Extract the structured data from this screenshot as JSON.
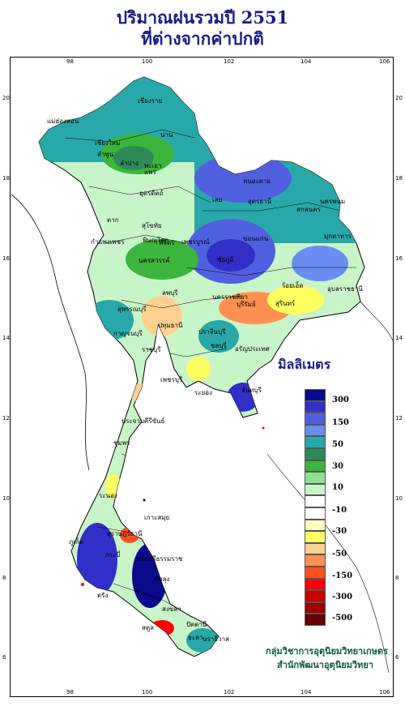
{
  "title_line1": "ปริมาณฝนรวมปี  2551",
  "title_line2": "ที่ต่างจากค่าปกติ",
  "axes": {
    "lon_ticks": [
      "98",
      "100",
      "102",
      "104",
      "106"
    ],
    "lat_ticks": [
      "20",
      "18",
      "16",
      "14",
      "12",
      "10",
      "8",
      "6"
    ]
  },
  "legend": {
    "title": "มิลลิเมตร",
    "colors": [
      "#0a0a8c",
      "#3030c8",
      "#5060e0",
      "#6b8cf0",
      "#28a8a8",
      "#2e8b57",
      "#3cb53c",
      "#90e090",
      "#c8f5c8",
      "#ffffff",
      "#ffffff",
      "#ffffc0",
      "#ffff60",
      "#ffd090",
      "#ff9050",
      "#ff5020",
      "#ff0000",
      "#c80000",
      "#a00000",
      "#640000"
    ],
    "labels": [
      "300",
      "150",
      "50",
      "30",
      "10",
      "-10",
      "-30",
      "-50",
      "-150",
      "-300",
      "-500"
    ]
  },
  "credit_line1": "กลุ่มวิชาการอุตุนิยมวิทยาเกษตร",
  "credit_line2": "สำนักพัฒนาอุตุนิยมวิทยา",
  "place_labels": [
    {
      "name": "เชียงราย"
    },
    {
      "name": "แม่ฮ่องสอน"
    },
    {
      "name": "เชียงใหม่"
    },
    {
      "name": "ลำพูน"
    },
    {
      "name": "ลำปาง"
    },
    {
      "name": "พะเยา"
    },
    {
      "name": "น่าน"
    },
    {
      "name": "แพร่"
    },
    {
      "name": "อุตรดิตถ์"
    },
    {
      "name": "ตาก"
    },
    {
      "name": "สุโขทัย"
    },
    {
      "name": "พิษณุโลก"
    },
    {
      "name": "กำแพงเพชร"
    },
    {
      "name": "พิจิตร"
    },
    {
      "name": "เพชรบูรณ์"
    },
    {
      "name": "นครสวรรค์"
    },
    {
      "name": "หนองคาย"
    },
    {
      "name": "อุดรธานี"
    },
    {
      "name": "เลย"
    },
    {
      "name": "สกลนคร"
    },
    {
      "name": "นครพนม"
    },
    {
      "name": "มุกดาหาร"
    },
    {
      "name": "ขอนแก่น"
    },
    {
      "name": "ชัยภูมิ"
    },
    {
      "name": "ร้อยเอ็ด"
    },
    {
      "name": "อุบลราชธานี"
    },
    {
      "name": "นครราชสีมา"
    },
    {
      "name": "สุรินทร์"
    },
    {
      "name": "บุรีรัมย์"
    },
    {
      "name": "ลพบุรี"
    },
    {
      "name": "สุพรรณบุรี"
    },
    {
      "name": "กาญจนบุรี"
    },
    {
      "name": "ปทุมธานี"
    },
    {
      "name": "ราชบุรี"
    },
    {
      "name": "ชลบุรี"
    },
    {
      "name": "ปราจีนบุรี"
    },
    {
      "name": "อรัญประเทศ"
    },
    {
      "name": "ระยอง"
    },
    {
      "name": "จันทบุรี"
    },
    {
      "name": "เพชรบุรี"
    },
    {
      "name": "ประจวบคีรีขันธ์"
    },
    {
      "name": "ชุมพร"
    },
    {
      "name": "ระนอง"
    },
    {
      "name": "เกาะสมุย"
    },
    {
      "name": "สุราษฎร์ธานี"
    },
    {
      "name": "ภูเก็ต"
    },
    {
      "name": "กระบี่"
    },
    {
      "name": "นครศรีธรรมราช"
    },
    {
      "name": "ตรัง"
    },
    {
      "name": "สงขลา"
    },
    {
      "name": "ปัตตานี"
    },
    {
      "name": "นราธิวาส"
    },
    {
      "name": "ยะลา"
    },
    {
      "name": "สตูล"
    },
    {
      "name": "พัทลุง"
    }
  ]
}
